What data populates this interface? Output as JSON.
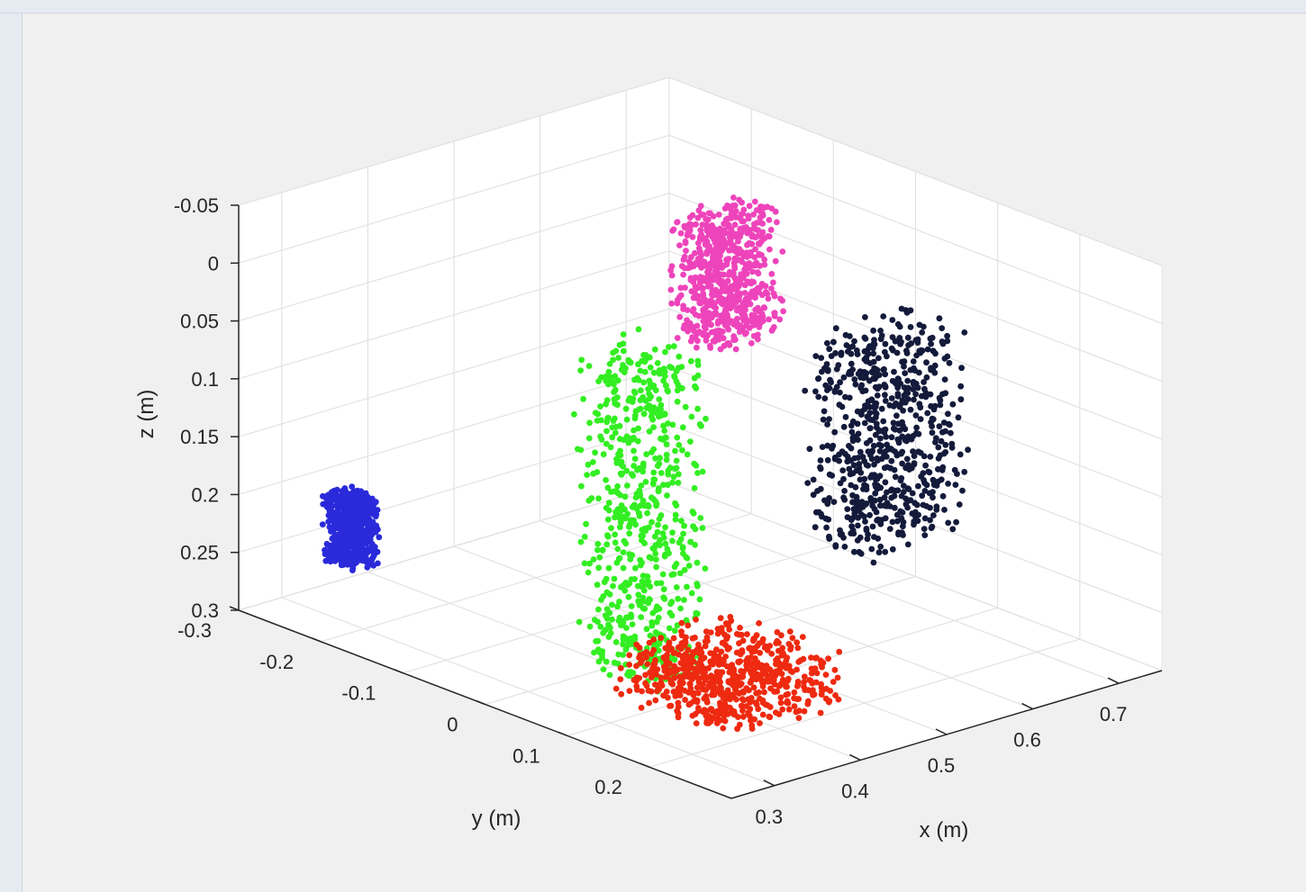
{
  "chart_data": {
    "type": "scatter",
    "projection": "3d",
    "grid": true,
    "xlabel": "x (m)",
    "ylabel": "y (m)",
    "zlabel": "z (m)",
    "xlim": [
      0.25,
      0.75
    ],
    "ylim": [
      -0.3,
      0.3
    ],
    "zlim": [
      -0.05,
      0.3
    ],
    "z_direction": "reverse",
    "x_ticks": [
      "0.3",
      "0.4",
      "0.5",
      "0.6",
      "0.7"
    ],
    "x_tick_values": [
      0.3,
      0.4,
      0.5,
      0.6,
      0.7
    ],
    "y_ticks": [
      "-0.3",
      "-0.2",
      "-0.1",
      "0",
      "0.1",
      "0.2"
    ],
    "y_tick_values": [
      -0.3,
      -0.2,
      -0.1,
      0,
      0.1,
      0.2
    ],
    "z_ticks": [
      "-0.05",
      "0",
      "0.05",
      "0.1",
      "0.15",
      "0.2",
      "0.25",
      "0.3"
    ],
    "z_tick_values": [
      -0.05,
      0,
      0.05,
      0.1,
      0.15,
      0.2,
      0.25,
      0.3
    ],
    "series": [
      {
        "color": "#2a2adb",
        "x": [
          0.29,
          0.32
        ],
        "y": [
          -0.24,
          -0.2
        ],
        "z": [
          0.19,
          0.25
        ]
      },
      {
        "color": "#33ee22",
        "x": [
          0.33,
          0.4
        ],
        "y": [
          0.02,
          0.12
        ],
        "z": [
          0.0,
          0.28
        ]
      },
      {
        "color": "#ee44bb",
        "x": [
          0.52,
          0.6
        ],
        "y": [
          -0.06,
          0.0
        ],
        "z": [
          -0.05,
          0.06
        ]
      },
      {
        "color": "#ee2a10",
        "x": [
          0.34,
          0.48
        ],
        "y": [
          0.06,
          0.2
        ],
        "z": [
          0.25,
          0.3
        ]
      },
      {
        "color": "#141a3a",
        "x": [
          0.6,
          0.72
        ],
        "y": [
          0.02,
          0.1
        ],
        "z": [
          0.05,
          0.23
        ]
      }
    ]
  }
}
